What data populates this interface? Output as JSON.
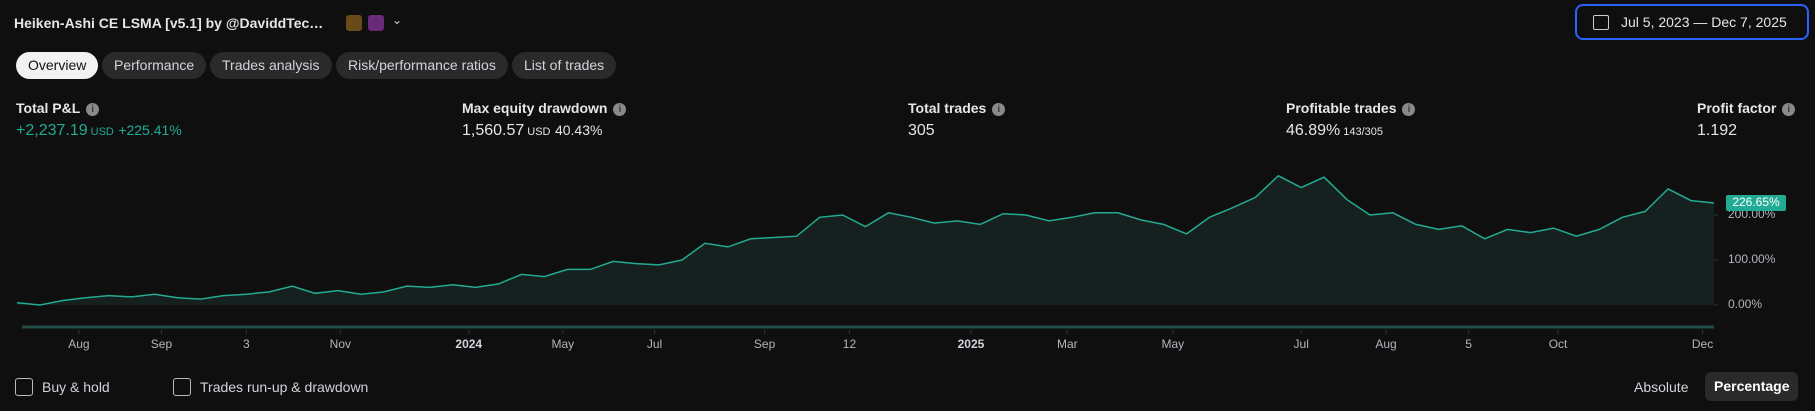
{
  "header": {
    "title": "Heiken-Ashi CE LSMA [v5.1] by @DaviddTec…",
    "date_range": "Jul 5, 2023 — Dec 7, 2025"
  },
  "tabs": [
    "Overview",
    "Performance",
    "Trades analysis",
    "Risk/performance ratios",
    "List of trades"
  ],
  "metrics": [
    {
      "label": "Total P&L",
      "value": "+2,237.19",
      "unit": "USD",
      "extra": "+225.41%"
    },
    {
      "label": "Max equity drawdown",
      "value": "1,560.57",
      "unit": "USD",
      "extra": "40.43%"
    },
    {
      "label": "Total trades",
      "value": "305"
    },
    {
      "label": "Profitable trades",
      "value": "46.89%",
      "extra": "143/305"
    },
    {
      "label": "Profit factor",
      "value": "1.192"
    }
  ],
  "chart_data": {
    "type": "line",
    "color": "#22ab94",
    "values": [
      5,
      0,
      10,
      16,
      21,
      18,
      24,
      16,
      13,
      21,
      24,
      29,
      42,
      26,
      32,
      24,
      29,
      42,
      39,
      45,
      39,
      47,
      68,
      63,
      79,
      79,
      97,
      92,
      89,
      100,
      137,
      129,
      147,
      150,
      153,
      195,
      200,
      174,
      205,
      195,
      182,
      187,
      179,
      203,
      200,
      187,
      195,
      205,
      205,
      189,
      179,
      158,
      195,
      216,
      239,
      287,
      261,
      284,
      234,
      200,
      205,
      179,
      168,
      176,
      147,
      168,
      161,
      171,
      153,
      168,
      195,
      208,
      258,
      232,
      226.65
    ],
    "current_label": "226.65%",
    "ylim": [
      0,
      300
    ],
    "yticks": [
      {
        "value": 0,
        "label": "0.00%"
      },
      {
        "value": 100,
        "label": "100.00%"
      },
      {
        "value": 200,
        "label": "200.00%"
      }
    ],
    "xlim": [
      0,
      74
    ],
    "xticks": [
      {
        "value": 2.7,
        "label": "Aug"
      },
      {
        "value": 6.3,
        "label": "Sep"
      },
      {
        "value": 10,
        "label": "3"
      },
      {
        "value": 14.1,
        "label": "Nov"
      },
      {
        "value": 19.7,
        "label": "2024"
      },
      {
        "value": 23.8,
        "label": "May"
      },
      {
        "value": 27.8,
        "label": "Jul"
      },
      {
        "value": 32.6,
        "label": "Sep"
      },
      {
        "value": 36.3,
        "label": "12"
      },
      {
        "value": 41.6,
        "label": "2025"
      },
      {
        "value": 45.8,
        "label": "Mar"
      },
      {
        "value": 50.4,
        "label": "May"
      },
      {
        "value": 56,
        "label": "Jul"
      },
      {
        "value": 59.7,
        "label": "Aug"
      },
      {
        "value": 63.3,
        "label": "5"
      },
      {
        "value": 67.2,
        "label": "Oct"
      },
      {
        "value": 73.5,
        "label": "Dec"
      }
    ]
  },
  "footer": {
    "buy_hold": "Buy & hold",
    "runup": "Trades run-up & drawdown",
    "absolute": "Absolute",
    "percentage": "Percentage"
  }
}
